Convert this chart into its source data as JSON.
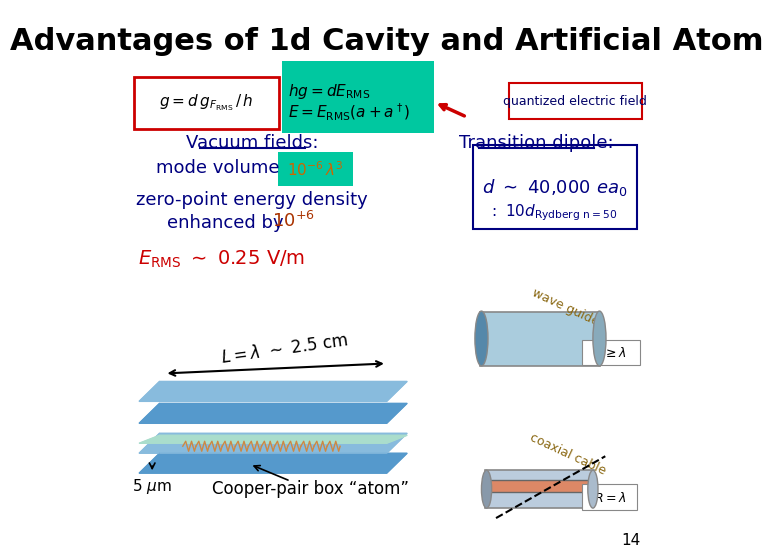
{
  "title": "Advantages of 1d Cavity and Artificial Atom",
  "bg_color": "#ffffff",
  "title_color": "#000000",
  "title_fontsize": 22,
  "formula_box1_color": "#cc0000",
  "formula_box1_bg": "#ffffff",
  "formula_box2_bg": "#00c8a0",
  "quant_field_text": "quantized electric field",
  "quant_field_color": "#000066",
  "vacuum_title": "Vacuum fields:",
  "vacuum_color": "#000080",
  "mode_vol_text": "mode volume",
  "mode_vol_exp_bg": "#00c8a0",
  "zpd_text": "zero-point energy density",
  "enhanced_text": "enhanced by",
  "enhanced_exp_color": "#aa3300",
  "erms_color": "#cc0000",
  "transition_title": "Transition dipole:",
  "transition_color": "#000080",
  "dipole_box_border": "#000080",
  "waveguide_color": "#8b6914",
  "coaxial_color": "#8b6914",
  "slide_num": "14"
}
